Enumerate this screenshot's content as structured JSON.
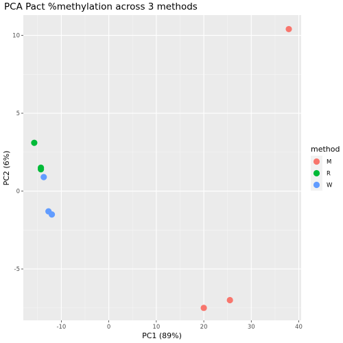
{
  "chart_data": {
    "type": "scatter",
    "title": "PCA Pact %methylation across 3 methods",
    "xlabel": "PC1 (89%)",
    "ylabel": "PC2 (6%)",
    "xlim": [
      -18,
      40.5
    ],
    "ylim": [
      -8.3,
      11.3
    ],
    "x_ticks": [
      -10,
      0,
      10,
      20,
      30,
      40
    ],
    "y_ticks": [
      -5,
      0,
      5,
      10
    ],
    "x_tick_labels": [
      "-10",
      "0",
      "10",
      "20",
      "30",
      "40"
    ],
    "y_tick_labels": [
      "-5",
      "0",
      "5",
      "10"
    ],
    "grid": true,
    "legend_position": "right",
    "legend_title": "method",
    "series": [
      {
        "name": "M",
        "color": "#F8766D",
        "points": [
          [
            37.9,
            10.4
          ],
          [
            25.5,
            -7.0
          ],
          [
            20.0,
            -7.5
          ]
        ]
      },
      {
        "name": "R",
        "color": "#00BA38",
        "points": [
          [
            -15.7,
            3.1
          ],
          [
            -14.3,
            1.5
          ],
          [
            -14.3,
            1.4
          ]
        ]
      },
      {
        "name": "W",
        "color": "#619CFF",
        "points": [
          [
            -13.7,
            0.9
          ],
          [
            -12.7,
            -1.3
          ],
          [
            -12.0,
            -1.5
          ]
        ]
      }
    ]
  }
}
